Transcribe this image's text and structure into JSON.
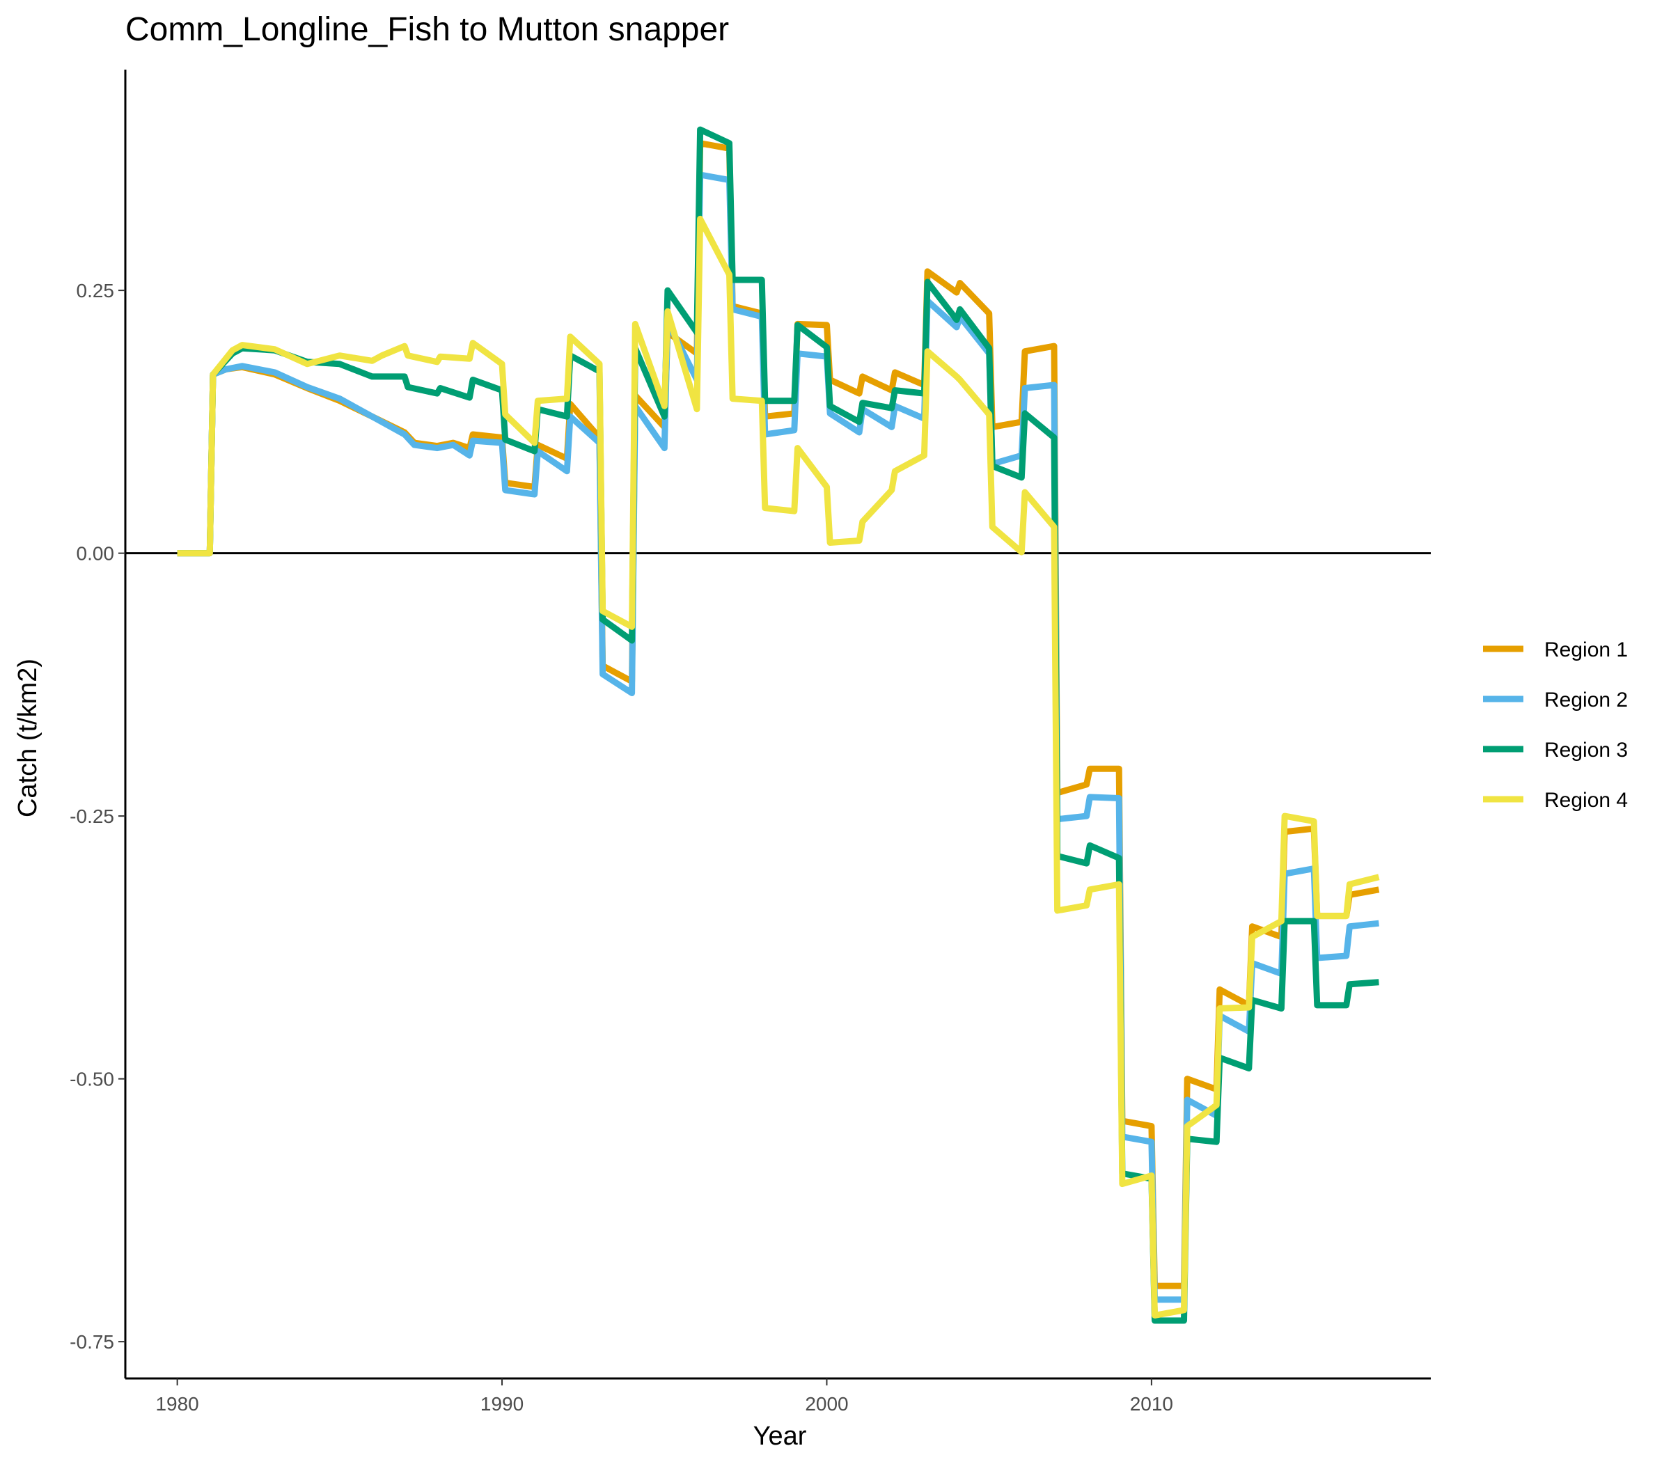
{
  "chart_data": {
    "type": "line",
    "title": "Comm_Longline_Fish to Mutton snapper",
    "xlabel": "Year",
    "ylabel": "Catch (t/km2)",
    "xlim": [
      1978.4,
      2018.6
    ],
    "ylim": [
      -0.785,
      0.46
    ],
    "xticks": [
      1980,
      1990,
      2000,
      2010
    ],
    "xtick_labels": [
      "1980",
      "1990",
      "2000",
      "2010"
    ],
    "yticks": [
      -0.75,
      -0.5,
      -0.25,
      0.0,
      0.25
    ],
    "ytick_labels": [
      "-0.75",
      "-0.50",
      "-0.25",
      "0.00",
      "0.25"
    ],
    "reference_line_y": 0,
    "grid": false,
    "legend_position": "right",
    "series": [
      {
        "name": "Region 1",
        "color": "#E69F00",
        "points": [
          [
            1980,
            0
          ],
          [
            1981,
            0
          ],
          [
            1981.1,
            0.17
          ],
          [
            1981.5,
            0.175
          ],
          [
            1982,
            0.177
          ],
          [
            1983,
            0.17
          ],
          [
            1984,
            0.157
          ],
          [
            1985,
            0.145
          ],
          [
            1986,
            0.13
          ],
          [
            1987,
            0.115
          ],
          [
            1987.3,
            0.105
          ],
          [
            1988,
            0.102
          ],
          [
            1988.5,
            0.105
          ],
          [
            1989,
            0.1
          ],
          [
            1989.1,
            0.113
          ],
          [
            1990,
            0.11
          ],
          [
            1990.1,
            0.067
          ],
          [
            1991,
            0.063
          ],
          [
            1991.1,
            0.103
          ],
          [
            1992,
            0.09
          ],
          [
            1992.1,
            0.142
          ],
          [
            1993,
            0.11
          ],
          [
            1993.1,
            -0.107
          ],
          [
            1994,
            -0.122
          ],
          [
            1994.1,
            0.15
          ],
          [
            1995,
            0.12
          ],
          [
            1995.1,
            0.21
          ],
          [
            1996,
            0.19
          ],
          [
            1996.1,
            0.39
          ],
          [
            1997,
            0.385
          ],
          [
            1997.1,
            0.235
          ],
          [
            1998,
            0.228
          ],
          [
            1998.1,
            0.13
          ],
          [
            1999,
            0.133
          ],
          [
            1999.1,
            0.218
          ],
          [
            2000,
            0.217
          ],
          [
            2000.1,
            0.165
          ],
          [
            2001,
            0.152
          ],
          [
            2001.1,
            0.168
          ],
          [
            2002,
            0.155
          ],
          [
            2002.1,
            0.172
          ],
          [
            2003,
            0.16
          ],
          [
            2003.1,
            0.268
          ],
          [
            2004,
            0.248
          ],
          [
            2004.1,
            0.257
          ],
          [
            2005,
            0.228
          ],
          [
            2005.1,
            0.12
          ],
          [
            2006,
            0.125
          ],
          [
            2006.1,
            0.192
          ],
          [
            2007,
            0.197
          ],
          [
            2007.1,
            -0.228
          ],
          [
            2008,
            -0.22
          ],
          [
            2008.1,
            -0.205
          ],
          [
            2009,
            -0.205
          ],
          [
            2009.1,
            -0.54
          ],
          [
            2010,
            -0.545
          ],
          [
            2010.1,
            -0.697
          ],
          [
            2011,
            -0.697
          ],
          [
            2011.1,
            -0.5
          ],
          [
            2012,
            -0.51
          ],
          [
            2012.1,
            -0.415
          ],
          [
            2013,
            -0.43
          ],
          [
            2013.1,
            -0.355
          ],
          [
            2014,
            -0.365
          ],
          [
            2014.1,
            -0.265
          ],
          [
            2015,
            -0.262
          ],
          [
            2015.1,
            -0.345
          ],
          [
            2016,
            -0.345
          ],
          [
            2016.1,
            -0.325
          ],
          [
            2017,
            -0.32
          ]
        ]
      },
      {
        "name": "Region 2",
        "color": "#56B4E9",
        "points": [
          [
            1980,
            0
          ],
          [
            1981,
            0
          ],
          [
            1981.1,
            0.17
          ],
          [
            1981.5,
            0.175
          ],
          [
            1982,
            0.178
          ],
          [
            1983,
            0.172
          ],
          [
            1984,
            0.158
          ],
          [
            1985,
            0.147
          ],
          [
            1986,
            0.13
          ],
          [
            1987,
            0.113
          ],
          [
            1987.3,
            0.103
          ],
          [
            1988,
            0.1
          ],
          [
            1988.5,
            0.103
          ],
          [
            1989,
            0.093
          ],
          [
            1989.1,
            0.107
          ],
          [
            1990,
            0.105
          ],
          [
            1990.1,
            0.06
          ],
          [
            1991,
            0.056
          ],
          [
            1991.1,
            0.097
          ],
          [
            1992,
            0.078
          ],
          [
            1992.1,
            0.13
          ],
          [
            1993,
            0.105
          ],
          [
            1993.1,
            -0.115
          ],
          [
            1994,
            -0.133
          ],
          [
            1994.1,
            0.14
          ],
          [
            1995,
            0.1
          ],
          [
            1995.1,
            0.22
          ],
          [
            1996,
            0.165
          ],
          [
            1996.1,
            0.36
          ],
          [
            1997,
            0.355
          ],
          [
            1997.1,
            0.232
          ],
          [
            1998,
            0.225
          ],
          [
            1998.1,
            0.113
          ],
          [
            1999,
            0.117
          ],
          [
            1999.1,
            0.19
          ],
          [
            2000,
            0.187
          ],
          [
            2000.1,
            0.133
          ],
          [
            2001,
            0.115
          ],
          [
            2001.1,
            0.137
          ],
          [
            2002,
            0.12
          ],
          [
            2002.1,
            0.14
          ],
          [
            2003,
            0.128
          ],
          [
            2003.1,
            0.24
          ],
          [
            2004,
            0.215
          ],
          [
            2004.1,
            0.225
          ],
          [
            2005,
            0.19
          ],
          [
            2005.1,
            0.085
          ],
          [
            2006,
            0.093
          ],
          [
            2006.1,
            0.157
          ],
          [
            2007,
            0.16
          ],
          [
            2007.1,
            -0.253
          ],
          [
            2008,
            -0.25
          ],
          [
            2008.1,
            -0.232
          ],
          [
            2009,
            -0.233
          ],
          [
            2009.1,
            -0.555
          ],
          [
            2010,
            -0.56
          ],
          [
            2010.1,
            -0.71
          ],
          [
            2011,
            -0.71
          ],
          [
            2011.1,
            -0.52
          ],
          [
            2012,
            -0.535
          ],
          [
            2012.1,
            -0.44
          ],
          [
            2013,
            -0.455
          ],
          [
            2013.1,
            -0.39
          ],
          [
            2014,
            -0.4
          ],
          [
            2014.1,
            -0.305
          ],
          [
            2015,
            -0.3
          ],
          [
            2015.1,
            -0.385
          ],
          [
            2016,
            -0.383
          ],
          [
            2016.1,
            -0.355
          ],
          [
            2017,
            -0.352
          ]
        ]
      },
      {
        "name": "Region 3",
        "color": "#009E73",
        "points": [
          [
            1980,
            0
          ],
          [
            1981,
            0
          ],
          [
            1981.1,
            0.17
          ],
          [
            1981.7,
            0.19
          ],
          [
            1982,
            0.195
          ],
          [
            1983,
            0.193
          ],
          [
            1984,
            0.182
          ],
          [
            1985,
            0.18
          ],
          [
            1986,
            0.168
          ],
          [
            1987,
            0.168
          ],
          [
            1987.1,
            0.158
          ],
          [
            1988,
            0.152
          ],
          [
            1988.1,
            0.157
          ],
          [
            1989,
            0.148
          ],
          [
            1989.1,
            0.165
          ],
          [
            1990,
            0.155
          ],
          [
            1990.1,
            0.108
          ],
          [
            1991,
            0.097
          ],
          [
            1991.1,
            0.137
          ],
          [
            1992,
            0.13
          ],
          [
            1992.1,
            0.188
          ],
          [
            1993,
            0.173
          ],
          [
            1993.1,
            -0.063
          ],
          [
            1994,
            -0.083
          ],
          [
            1994.1,
            0.195
          ],
          [
            1995,
            0.13
          ],
          [
            1995.1,
            0.25
          ],
          [
            1996,
            0.21
          ],
          [
            1996.1,
            0.403
          ],
          [
            1997,
            0.39
          ],
          [
            1997.1,
            0.26
          ],
          [
            1998,
            0.26
          ],
          [
            1998.1,
            0.145
          ],
          [
            1999,
            0.145
          ],
          [
            1999.1,
            0.217
          ],
          [
            2000,
            0.196
          ],
          [
            2000.1,
            0.14
          ],
          [
            2001,
            0.125
          ],
          [
            2001.1,
            0.143
          ],
          [
            2002,
            0.138
          ],
          [
            2002.1,
            0.155
          ],
          [
            2003,
            0.152
          ],
          [
            2003.1,
            0.258
          ],
          [
            2004,
            0.222
          ],
          [
            2004.1,
            0.232
          ],
          [
            2005,
            0.195
          ],
          [
            2005.1,
            0.083
          ],
          [
            2006,
            0.072
          ],
          [
            2006.1,
            0.133
          ],
          [
            2007,
            0.11
          ],
          [
            2007.1,
            -0.288
          ],
          [
            2008,
            -0.295
          ],
          [
            2008.1,
            -0.278
          ],
          [
            2009,
            -0.29
          ],
          [
            2009.1,
            -0.59
          ],
          [
            2010,
            -0.595
          ],
          [
            2010.1,
            -0.73
          ],
          [
            2011,
            -0.73
          ],
          [
            2011.1,
            -0.557
          ],
          [
            2012,
            -0.56
          ],
          [
            2012.1,
            -0.48
          ],
          [
            2013,
            -0.49
          ],
          [
            2013.1,
            -0.425
          ],
          [
            2014,
            -0.433
          ],
          [
            2014.1,
            -0.35
          ],
          [
            2015,
            -0.35
          ],
          [
            2015.1,
            -0.43
          ],
          [
            2016,
            -0.43
          ],
          [
            2016.1,
            -0.41
          ],
          [
            2017,
            -0.408
          ]
        ]
      },
      {
        "name": "Region 4",
        "color": "#F0E442",
        "points": [
          [
            1980,
            0
          ],
          [
            1981,
            0
          ],
          [
            1981.1,
            0.17
          ],
          [
            1981.7,
            0.193
          ],
          [
            1982,
            0.198
          ],
          [
            1983,
            0.194
          ],
          [
            1984,
            0.18
          ],
          [
            1985,
            0.188
          ],
          [
            1986,
            0.183
          ],
          [
            1986.3,
            0.188
          ],
          [
            1987,
            0.197
          ],
          [
            1987.1,
            0.188
          ],
          [
            1988,
            0.182
          ],
          [
            1988.1,
            0.187
          ],
          [
            1989,
            0.185
          ],
          [
            1989.1,
            0.2
          ],
          [
            1990,
            0.18
          ],
          [
            1990.1,
            0.132
          ],
          [
            1991,
            0.105
          ],
          [
            1991.1,
            0.145
          ],
          [
            1992,
            0.147
          ],
          [
            1992.1,
            0.206
          ],
          [
            1993,
            0.18
          ],
          [
            1993.1,
            -0.055
          ],
          [
            1994,
            -0.07
          ],
          [
            1994.1,
            0.218
          ],
          [
            1995,
            0.14
          ],
          [
            1995.1,
            0.23
          ],
          [
            1996,
            0.137
          ],
          [
            1996.1,
            0.318
          ],
          [
            1997,
            0.265
          ],
          [
            1997.1,
            0.147
          ],
          [
            1998,
            0.145
          ],
          [
            1998.1,
            0.043
          ],
          [
            1999,
            0.04
          ],
          [
            1999.1,
            0.1
          ],
          [
            2000,
            0.063
          ],
          [
            2000.1,
            0.01
          ],
          [
            2001,
            0.012
          ],
          [
            2001.1,
            0.03
          ],
          [
            2002,
            0.06
          ],
          [
            2002.1,
            0.078
          ],
          [
            2003,
            0.093
          ],
          [
            2003.1,
            0.192
          ],
          [
            2004,
            0.168
          ],
          [
            2004.1,
            0.165
          ],
          [
            2005,
            0.132
          ],
          [
            2005.1,
            0.025
          ],
          [
            2006,
            0.001
          ],
          [
            2006.1,
            0.058
          ],
          [
            2007,
            0.025
          ],
          [
            2007.1,
            -0.34
          ],
          [
            2008,
            -0.335
          ],
          [
            2008.1,
            -0.32
          ],
          [
            2009,
            -0.315
          ],
          [
            2009.1,
            -0.6
          ],
          [
            2010,
            -0.592
          ],
          [
            2010.1,
            -0.725
          ],
          [
            2011,
            -0.72
          ],
          [
            2011.1,
            -0.545
          ],
          [
            2012,
            -0.525
          ],
          [
            2012.1,
            -0.433
          ],
          [
            2013,
            -0.432
          ],
          [
            2013.1,
            -0.365
          ],
          [
            2014,
            -0.35
          ],
          [
            2014.1,
            -0.25
          ],
          [
            2015,
            -0.255
          ],
          [
            2015.1,
            -0.345
          ],
          [
            2016,
            -0.345
          ],
          [
            2016.1,
            -0.315
          ],
          [
            2017,
            -0.308
          ]
        ]
      }
    ]
  }
}
